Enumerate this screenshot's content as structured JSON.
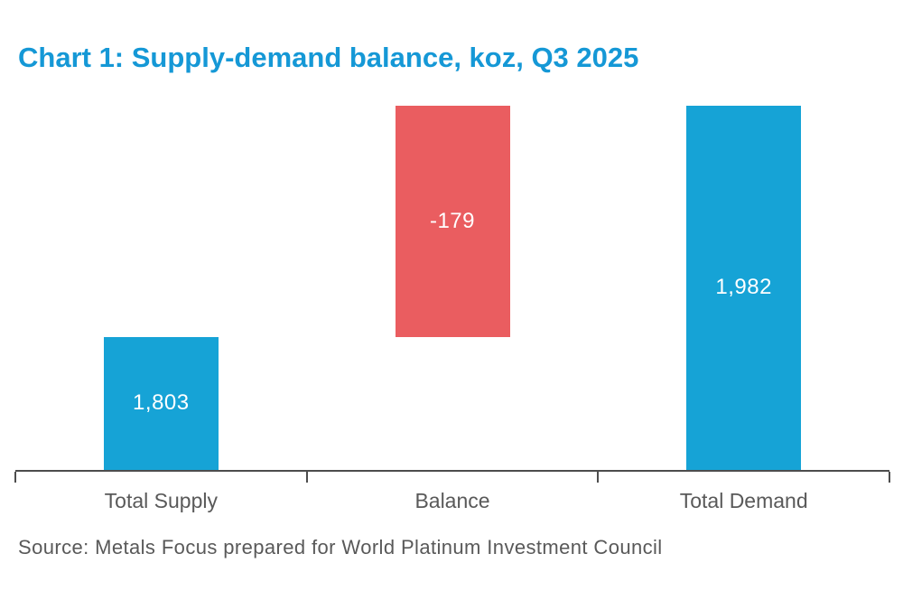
{
  "header": {
    "title": "Chart 1: Supply-demand balance, koz, Q3 2025"
  },
  "footer": {
    "source": "Source: Metals Focus prepared for World Platinum Investment Council"
  },
  "chart_data": {
    "type": "bar",
    "subtype": "waterfall",
    "title": "Chart 1: Supply-demand balance, koz, Q3 2025",
    "unit": "koz",
    "period": "Q3 2025",
    "categories": [
      "Total Supply",
      "Balance",
      "Total Demand"
    ],
    "values": [
      1803,
      -179,
      1982
    ],
    "value_labels": [
      "1,803",
      "-179",
      "1,982"
    ],
    "bar_segments": [
      {
        "category": "Total Supply",
        "from": 0,
        "to": 1803,
        "color": "#16A3D6",
        "label": "1,803"
      },
      {
        "category": "Balance",
        "from": 1803,
        "to": 1982,
        "color": "#EA5D60",
        "label": "-179"
      },
      {
        "category": "Total Demand",
        "from": 0,
        "to": 1982,
        "color": "#16A3D6",
        "label": "1,982"
      }
    ],
    "xlabel": "",
    "ylabel": "",
    "ylim": [
      1700,
      2000
    ],
    "y_axis_visible": false,
    "grid": false,
    "legend": false,
    "source": "Source: Metals Focus prepared for World Platinum Investment Council",
    "colors": {
      "positive_bar": "#16A3D6",
      "negative_bar": "#EA5D60",
      "title": "#1598D6",
      "axis": "#4D4D4D",
      "category_text": "#595959",
      "source_text": "#595959",
      "bar_value_text": "#FFFFFF"
    }
  }
}
